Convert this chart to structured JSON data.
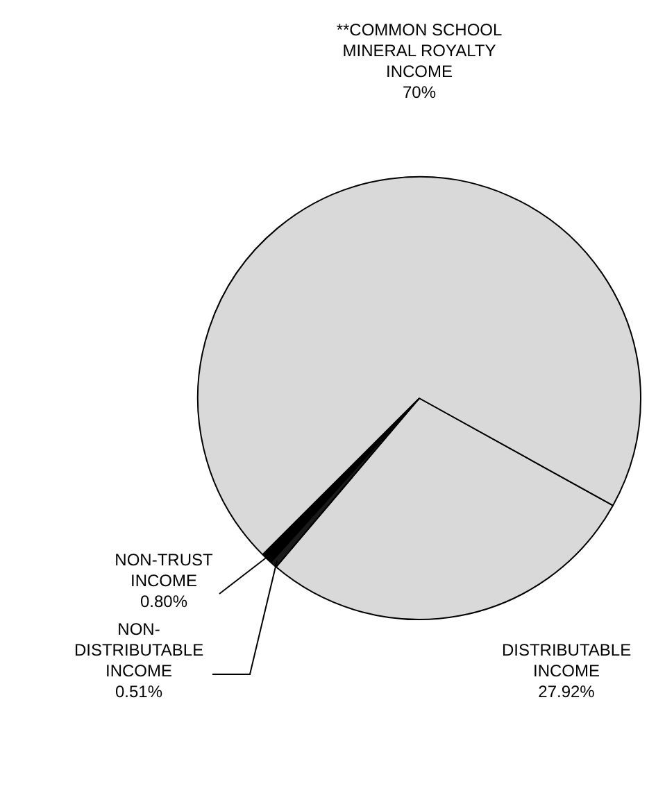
{
  "chart_data": {
    "type": "pie",
    "categories": [
      "DISTRIBUTABLE INCOME",
      "NON-DISTRIBUTABLE INCOME",
      "NON-TRUST INCOME",
      "**COMMON SCHOOL MINERAL ROYALTY INCOME"
    ],
    "values": [
      27.92,
      0.51,
      0.8,
      70
    ],
    "value_labels": [
      "27.92%",
      "0.51%",
      "0.80%",
      "70%"
    ],
    "colors": [
      "#d9d9d9",
      "#1a1a1a",
      "#000000",
      "#d9d9d9"
    ],
    "legend": false
  }
}
